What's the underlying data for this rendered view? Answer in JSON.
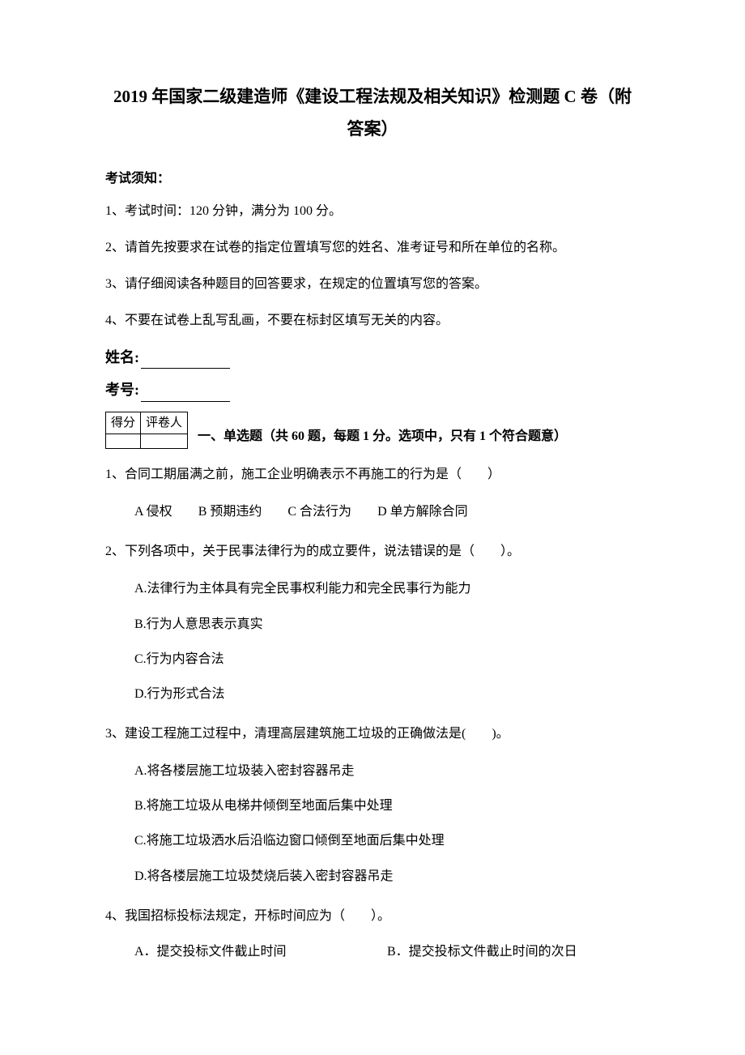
{
  "title_line1": "2019 年国家二级建造师《建设工程法规及相关知识》检测题 C 卷（附",
  "title_line2": "答案）",
  "notice_header": "考试须知：",
  "notices": [
    "1、考试时间：120 分钟，满分为 100 分。",
    "2、请首先按要求在试卷的指定位置填写您的姓名、准考证号和所在单位的名称。",
    "3、请仔细阅读各种题目的回答要求，在规定的位置填写您的答案。",
    "4、不要在试卷上乱写乱画，不要在标封区填写无关的内容。"
  ],
  "name_label": "姓名:",
  "id_label": "考号:",
  "score_table": {
    "headers": [
      "得分",
      "评卷人"
    ]
  },
  "section_title": "一、单选题（共 60 题，每题 1 分。选项中，只有 1 个符合题意）",
  "questions": [
    {
      "number": "1、",
      "text": "合同工期届满之前，施工企业明确表示不再施工的行为是（　　）",
      "options_inline": true,
      "options": [
        "A 侵权",
        "B 预期违约",
        "C 合法行为",
        "D 单方解除合同"
      ]
    },
    {
      "number": "2、",
      "text": "下列各项中，关于民事法律行为的成立要件，说法错误的是（　　）。",
      "options_inline": false,
      "options": [
        "A.法律行为主体具有完全民事权利能力和完全民事行为能力",
        "B.行为人意思表示真实",
        "C.行为内容合法",
        "D.行为形式合法"
      ]
    },
    {
      "number": "3、",
      "text": "建设工程施工过程中，清理高层建筑施工垃圾的正确做法是(　　)。",
      "options_inline": false,
      "options": [
        "A.将各楼层施工垃圾装入密封容器吊走",
        "B.将施工垃圾从电梯井倾倒至地面后集中处理",
        "C.将施工垃圾洒水后沿临边窗口倾倒至地面后集中处理",
        "D.将各楼层施工垃圾焚烧后装入密封容器吊走"
      ]
    },
    {
      "number": "4、",
      "text": "我国招标投标法规定，开标时间应为（　　）。",
      "options_two_col": true,
      "options": [
        "A．提交投标文件截止时间",
        "B．提交投标文件截止时间的次日"
      ]
    }
  ]
}
